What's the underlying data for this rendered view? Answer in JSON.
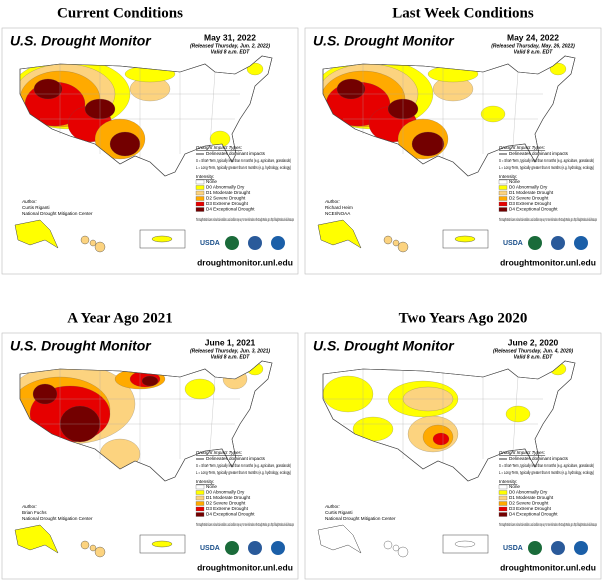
{
  "shared": {
    "author_label": "Author:",
    "url": "droughtmonitor.unl.edu",
    "usda": "USDA",
    "impact_title": "Drought Impact Types:",
    "impact_delineates": "Delineates dominant impacts",
    "impact_short": "S = Short-Term, typically less than 6 months (e.g. agriculture, grasslands)",
    "impact_long": "L = Long-Term, typically greater than 6 months (e.g. hydrology, ecology)",
    "intensity_title": "Intensity:",
    "levels": [
      {
        "label": "None",
        "color": "#ffffff"
      },
      {
        "label": "D0 Abnormally Dry",
        "color": "#ffff00"
      },
      {
        "label": "D1 Moderate Drought",
        "color": "#fcd37f"
      },
      {
        "label": "D2 Severe Drought",
        "color": "#ffaa00"
      },
      {
        "label": "D3 Extreme Drought",
        "color": "#e60000"
      },
      {
        "label": "D4 Exceptional Drought",
        "color": "#730000"
      }
    ],
    "note": "The Drought Monitor focuses on broad-scale conditions. Local conditions may vary. For more information on the Drought Monitor, go to https://droughtmonitor.unl.edu/About.aspx"
  },
  "panels": [
    {
      "heading": "Current Conditions",
      "map_title": "U.S. Drought Monitor",
      "date": "May 31, 2022",
      "released": "(Released Thursday, Jun. 2, 2022)",
      "valid": "Valid 8 a.m. EDT",
      "author": "Curtis Riganti",
      "author_org": "National Drought Mitigation Center"
    },
    {
      "heading": "Last Week Conditions",
      "map_title": "U.S. Drought Monitor",
      "date": "May 24, 2022",
      "released": "(Released Thursday, May. 26, 2022)",
      "valid": "Valid 8 a.m. EDT",
      "author": "Richard Heim",
      "author_org": "NCEI/NOAA"
    },
    {
      "heading": "A Year Ago 2021",
      "map_title": "U.S. Drought Monitor",
      "date": "June 1, 2021",
      "released": "(Released Thursday, Jun. 3, 2021)",
      "valid": "Valid 8 a.m. EDT",
      "author": "Brian Fuchs",
      "author_org": "National Drought Mitigation Center"
    },
    {
      "heading": "Two Years Ago 2020",
      "map_title": "U.S. Drought Monitor",
      "date": "June 2, 2020",
      "released": "(Released Thursday, Jun. 4, 2020)",
      "valid": "Valid 8 a.m. EDT",
      "author": "Curtis Riganti",
      "author_org": "National Drought Mitigation Center"
    }
  ]
}
